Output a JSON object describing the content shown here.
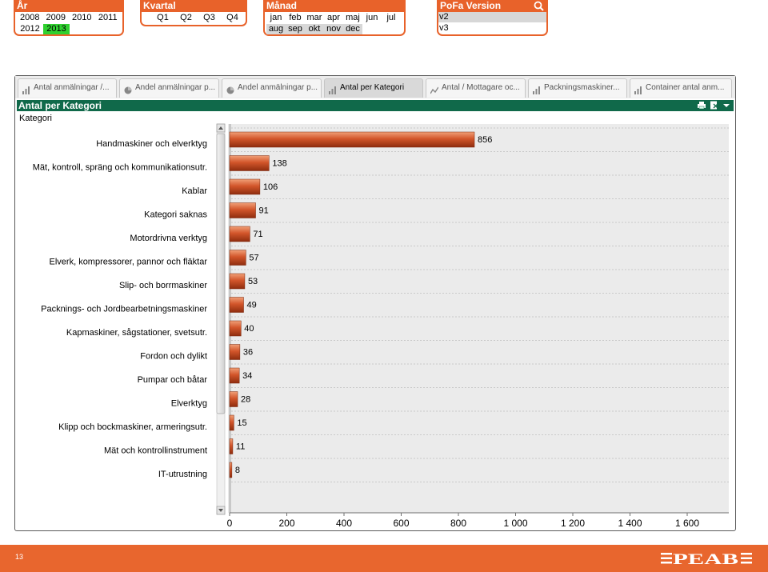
{
  "filters": {
    "year": {
      "title": "År",
      "row1": [
        "2008",
        "2009",
        "2010",
        "2011"
      ],
      "row2": [
        "2012",
        "2013"
      ],
      "selected": "2013"
    },
    "quarter": {
      "title": "Kvartal",
      "items": [
        "Q1",
        "Q2",
        "Q3",
        "Q4"
      ]
    },
    "month": {
      "title": "Månad",
      "row1": [
        "jan",
        "feb",
        "mar",
        "apr",
        "maj",
        "jun",
        "jul"
      ],
      "row2": [
        "aug",
        "sep",
        "okt",
        "nov",
        "dec"
      ]
    },
    "pofa": {
      "title": "PoFa Version",
      "items": [
        "v2",
        "v3"
      ]
    }
  },
  "tabs": [
    {
      "label": "Antal anmälningar /...",
      "icon": "bar-chart-icon"
    },
    {
      "label": "Andel anmälningar p...",
      "icon": "pie-chart-icon"
    },
    {
      "label": "Andel anmälningar p...",
      "icon": "pie-chart-icon"
    },
    {
      "label": "Antal per Kategori",
      "icon": "bar-chart-icon",
      "active": true
    },
    {
      "label": "Antal / Mottagare oc...",
      "icon": "line-chart-icon"
    },
    {
      "label": "Packningsmaskiner...",
      "icon": "bar-chart-icon"
    },
    {
      "label": "Container antal anm...",
      "icon": "bar-chart-icon"
    }
  ],
  "chart_window": {
    "caption": "Antal per Kategori",
    "dimension_label": "Kategori"
  },
  "chart_data": {
    "type": "bar",
    "orientation": "horizontal",
    "categories": [
      "Handmaskiner och elverktyg",
      "Mät, kontroll, spräng och kommunikationsutr.",
      "Kablar",
      "Kategori saknas",
      "Motordrivna verktyg",
      "Elverk, kompressorer, pannor och fläktar",
      "Slip- och borrmaskiner",
      "Packnings- och Jordbearbetningsmaskiner",
      "Kapmaskiner, sågstationer, svetsutr.",
      "Fordon och dylikt",
      "Pumpar och båtar",
      "Elverktyg",
      "Klipp och bockmaskiner, armeringsutr.",
      "Mät och kontrollinstrument",
      "IT-utrustning"
    ],
    "values": [
      856,
      138,
      106,
      91,
      71,
      57,
      53,
      49,
      40,
      36,
      34,
      28,
      15,
      11,
      8
    ],
    "xlim": [
      0,
      1700
    ],
    "x_ticks": [
      0,
      200,
      400,
      600,
      800,
      1000,
      1200,
      1400,
      1600
    ],
    "x_tick_labels": [
      "0",
      "200",
      "400",
      "600",
      "800",
      "1 000",
      "1 200",
      "1 400",
      "1 600"
    ],
    "grid": true,
    "bar_color": "#c8411a"
  },
  "footer": {
    "page_number": "13",
    "logo_text": "PEAB"
  },
  "colors": {
    "accent": "#e8622a",
    "caption": "#10694a",
    "selected": "#2fd12f",
    "footer": "#e8662e"
  }
}
